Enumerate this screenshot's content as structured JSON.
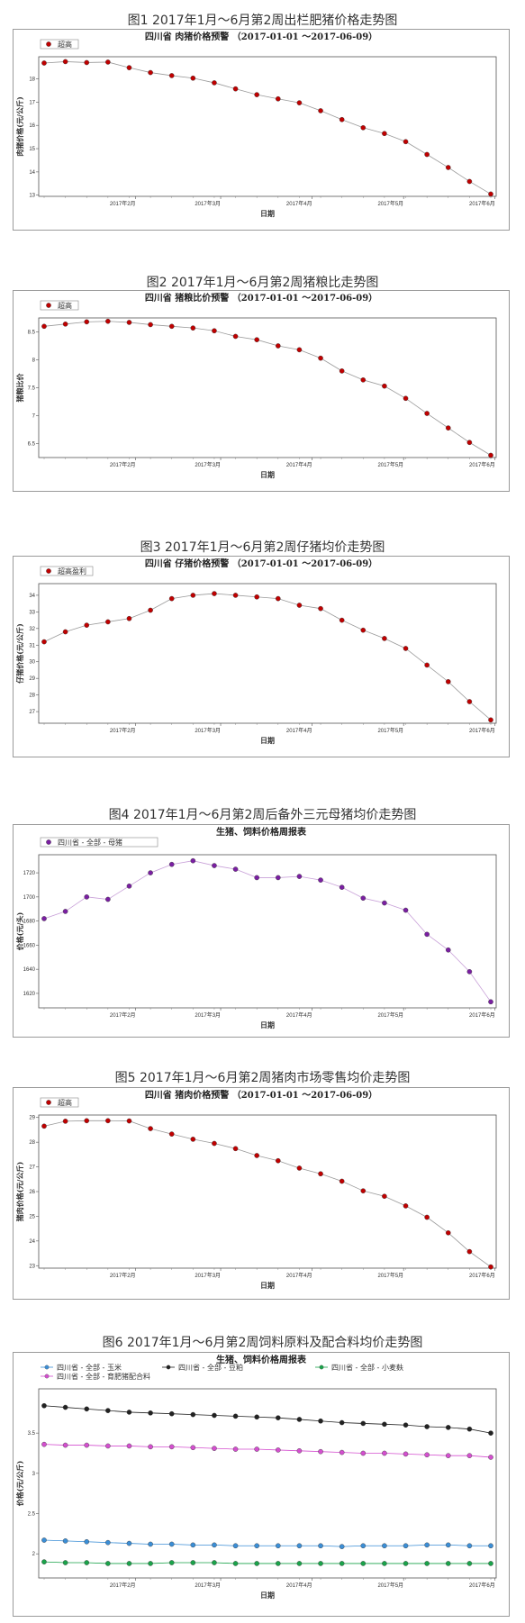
{
  "charts": [
    {
      "caption": "图1 2017年1月～6月第2周出栏肥猪价格走势图",
      "title": "四川省 肉猪价格预警 （2017-01-01 ～2017-06-09）",
      "ylabel": "肉猪价格(元/公斤)",
      "xlabel": "日期",
      "legend": [
        {
          "name": "超高",
          "color": "#c00000"
        }
      ],
      "yticks": [
        13,
        14,
        15,
        16,
        17,
        18
      ],
      "ylim": [
        12.95,
        18.95
      ],
      "xticks": [
        "2017年2月",
        "2017年3月",
        "2017年4月",
        "2017年5月",
        "2017年6月"
      ],
      "line_color": "#9a9a9a",
      "series": [
        {
          "color": "#c00000",
          "values": [
            18.68,
            18.74,
            18.7,
            18.72,
            18.48,
            18.27,
            18.14,
            18.03,
            17.83,
            17.57,
            17.32,
            17.14,
            16.97,
            16.63,
            16.25,
            15.9,
            15.65,
            15.3,
            14.75,
            14.19,
            13.59,
            13.05
          ]
        }
      ]
    },
    {
      "caption": "图2 2017年1月～6月第2周猪粮比走势图",
      "title": "四川省 猪粮比价预警 （2017-01-01 ～2017-06-09）",
      "ylabel": "猪粮比价",
      "xlabel": "日期",
      "legend": [
        {
          "name": "超高",
          "color": "#c00000"
        }
      ],
      "yticks": [
        6.5,
        7.0,
        7.5,
        8.0,
        8.5
      ],
      "ylim": [
        6.25,
        8.75
      ],
      "xticks": [
        "2017年2月",
        "2017年3月",
        "2017年4月",
        "2017年5月",
        "2017年6月"
      ],
      "line_color": "#9a9a9a",
      "series": [
        {
          "color": "#c00000",
          "values": [
            8.6,
            8.64,
            8.68,
            8.69,
            8.67,
            8.63,
            8.6,
            8.57,
            8.52,
            8.42,
            8.36,
            8.25,
            8.18,
            8.03,
            7.8,
            7.64,
            7.53,
            7.31,
            7.04,
            6.78,
            6.52,
            6.29
          ]
        }
      ]
    },
    {
      "caption": "图3 2017年1月～6月第2周仔猪均价走势图",
      "title": "四川省 仔猪价格预警 （2017-01-01 ～2017-06-09）",
      "ylabel": "仔猪价格(元/公斤)",
      "xlabel": "日期",
      "legend": [
        {
          "name": "超高盈利",
          "color": "#c00000"
        }
      ],
      "yticks": [
        27,
        28,
        29,
        30,
        31,
        32,
        33,
        34
      ],
      "ylim": [
        26.3,
        34.7
      ],
      "xticks": [
        "2017年2月",
        "2017年3月",
        "2017年4月",
        "2017年5月",
        "2017年6月"
      ],
      "line_color": "#9a9a9a",
      "series": [
        {
          "color": "#c00000",
          "values": [
            31.2,
            31.8,
            32.2,
            32.4,
            32.6,
            33.1,
            33.8,
            34.0,
            34.1,
            34.0,
            33.9,
            33.8,
            33.4,
            33.2,
            32.5,
            31.9,
            31.4,
            30.8,
            29.8,
            28.8,
            27.6,
            26.5
          ]
        }
      ]
    },
    {
      "caption": "图4 2017年1月～6月第2周后备外三元母猪均价走势图",
      "title": "生猪、饲料价格周报表",
      "ylabel": "价格(元/头)",
      "xlabel": "日期",
      "legend": [
        {
          "name": "四川省 - 全部 - 母猪",
          "color": "#7a1fa2"
        }
      ],
      "yticks": [
        1620,
        1640,
        1660,
        1680,
        1700,
        1720
      ],
      "ylim": [
        1608,
        1735
      ],
      "xticks": [
        "2017年2月",
        "2017年3月",
        "2017年4月",
        "2017年5月",
        "2017年6月"
      ],
      "line_color": "#c8a0d8",
      "series": [
        {
          "color": "#7a1fa2",
          "values": [
            1682,
            1688,
            1700,
            1698,
            1709,
            1720,
            1727,
            1730,
            1726,
            1723,
            1716,
            1716,
            1717,
            1714,
            1708,
            1699,
            1695,
            1689,
            1669,
            1656,
            1638,
            1613
          ]
        }
      ]
    },
    {
      "caption": "图5 2017年1月～6月第2周猪肉市场零售均价走势图",
      "title": "四川省 猪肉价格预警 （2017-01-01 ～2017-06-09）",
      "ylabel": "猪肉价格(元/公斤)",
      "xlabel": "日期",
      "legend": [
        {
          "name": "超高",
          "color": "#c00000"
        }
      ],
      "yticks": [
        23,
        24,
        25,
        26,
        27,
        28,
        29
      ],
      "ylim": [
        22.9,
        29.1
      ],
      "xticks": [
        "2017年2月",
        "2017年3月",
        "2017年4月",
        "2017年5月",
        "2017年6月"
      ],
      "line_color": "#9a9a9a",
      "series": [
        {
          "color": "#c00000",
          "values": [
            28.65,
            28.85,
            28.87,
            28.87,
            28.86,
            28.55,
            28.33,
            28.12,
            27.95,
            27.74,
            27.46,
            27.25,
            26.95,
            26.72,
            26.42,
            26.03,
            25.81,
            25.42,
            24.96,
            24.33,
            23.57,
            22.95
          ]
        }
      ]
    },
    {
      "caption": "图6 2017年1月～6月第2周饲料原料及配合料均价走势图",
      "title": "生猪、饲料价格周报表",
      "ylabel": "价格(元/公斤)",
      "xlabel": "日期",
      "legend": [
        {
          "name": "四川省 - 全部 - 玉米",
          "color": "#3b8ed6"
        },
        {
          "name": "四川省 - 全部 - 豆粕",
          "color": "#222222"
        },
        {
          "name": "四川省 - 全部 - 小麦麸",
          "color": "#1aa34a"
        },
        {
          "name": "四川省 - 全部 - 育肥猪配合料",
          "color": "#d44fcf"
        }
      ],
      "yticks": [
        2.0,
        2.5,
        3.0,
        3.5
      ],
      "ylim": [
        1.7,
        4.05
      ],
      "xticks": [
        "2017年2月",
        "2017年3月",
        "2017年4月",
        "2017年5月",
        "2017年6月"
      ],
      "line_color": null,
      "series": [
        {
          "name": "四川省 - 全部 - 玉米",
          "color": "#3b8ed6",
          "values": [
            2.17,
            2.16,
            2.15,
            2.14,
            2.13,
            2.12,
            2.12,
            2.11,
            2.11,
            2.1,
            2.1,
            2.1,
            2.1,
            2.1,
            2.09,
            2.1,
            2.1,
            2.1,
            2.11,
            2.11,
            2.1,
            2.1
          ]
        },
        {
          "name": "四川省 - 全部 - 豆粕",
          "color": "#222222",
          "values": [
            3.84,
            3.82,
            3.8,
            3.78,
            3.76,
            3.75,
            3.74,
            3.73,
            3.72,
            3.71,
            3.7,
            3.69,
            3.67,
            3.65,
            3.63,
            3.62,
            3.61,
            3.6,
            3.58,
            3.57,
            3.55,
            3.5
          ]
        },
        {
          "name": "四川省 - 全部 - 小麦麸",
          "color": "#1aa34a",
          "values": [
            1.9,
            1.89,
            1.89,
            1.88,
            1.88,
            1.88,
            1.89,
            1.89,
            1.89,
            1.88,
            1.88,
            1.88,
            1.88,
            1.88,
            1.88,
            1.88,
            1.88,
            1.88,
            1.88,
            1.88,
            1.88,
            1.88
          ]
        },
        {
          "name": "四川省 - 全部 - 育肥猪配合料",
          "color": "#d44fcf",
          "values": [
            3.36,
            3.35,
            3.35,
            3.34,
            3.34,
            3.33,
            3.33,
            3.32,
            3.31,
            3.3,
            3.3,
            3.29,
            3.28,
            3.27,
            3.26,
            3.25,
            3.25,
            3.24,
            3.23,
            3.22,
            3.22,
            3.2
          ]
        }
      ]
    }
  ]
}
